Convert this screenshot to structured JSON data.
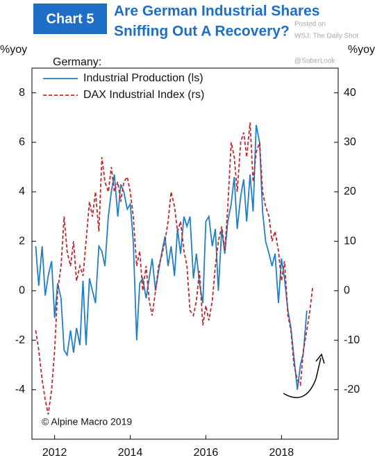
{
  "badge": "Chart 5",
  "watermark": {
    "line1": "Posted on",
    "line2": "WSJ: The Daily Shot",
    "handle": "@SoberLook"
  },
  "chart_data": {
    "type": "line",
    "title": "Are German Industrial Shares Sniffing Out A Recovery?",
    "ylabel": "%yoy",
    "y2label": "%yoy",
    "legend_title": "Germany:",
    "legend": "upper-left",
    "source": "© Alpine Macro 2019",
    "xlim": [
      2011.4,
      2019.5
    ],
    "xticks": [
      2012,
      2014,
      2016,
      2018
    ],
    "ylim": [
      -6,
      9
    ],
    "yticks": [
      -4,
      -2,
      0,
      2,
      4,
      6,
      8
    ],
    "y2lim": [
      -30,
      45
    ],
    "y2ticks": [
      -20,
      -10,
      0,
      10,
      20,
      30,
      40
    ],
    "x": [
      2011.5,
      2011.58,
      2011.67,
      2011.75,
      2011.83,
      2011.92,
      2012,
      2012.08,
      2012.17,
      2012.25,
      2012.33,
      2012.42,
      2012.5,
      2012.58,
      2012.67,
      2012.75,
      2012.83,
      2012.92,
      2013,
      2013.08,
      2013.17,
      2013.25,
      2013.33,
      2013.42,
      2013.5,
      2013.58,
      2013.67,
      2013.75,
      2013.83,
      2013.92,
      2014,
      2014.08,
      2014.17,
      2014.25,
      2014.33,
      2014.42,
      2014.5,
      2014.58,
      2014.67,
      2014.75,
      2014.83,
      2014.92,
      2015,
      2015.08,
      2015.17,
      2015.25,
      2015.33,
      2015.42,
      2015.5,
      2015.58,
      2015.67,
      2015.75,
      2015.83,
      2015.92,
      2016,
      2016.08,
      2016.17,
      2016.25,
      2016.33,
      2016.42,
      2016.5,
      2016.58,
      2016.67,
      2016.75,
      2016.83,
      2016.92,
      2017,
      2017.08,
      2017.17,
      2017.25,
      2017.33,
      2017.42,
      2017.5,
      2017.58,
      2017.67,
      2017.75,
      2017.83,
      2017.92,
      2018,
      2018.08,
      2018.17,
      2018.25,
      2018.33,
      2018.42,
      2018.5,
      2018.58,
      2018.67,
      2018.75,
      2018.83
    ],
    "series": [
      {
        "name": "Industrial Production (ls)",
        "color": "#1f7ec4",
        "axis": "y",
        "values": [
          1.8,
          0.2,
          1.8,
          -0.2,
          0.6,
          1.2,
          -1.1,
          0.3,
          -0.3,
          -2.4,
          -2.6,
          -1.6,
          -2.5,
          -1.5,
          -2.2,
          0.4,
          -2.2,
          0.5,
          0,
          -0.5,
          1.8,
          1.6,
          1,
          3,
          4,
          4.7,
          3,
          4.3,
          4,
          3.3,
          3.5,
          2,
          -2,
          0.3,
          0.5,
          -0.3,
          0.5,
          1.3,
          0,
          0.8,
          1.5,
          2.2,
          1,
          1.8,
          0.6,
          2.5,
          1.5,
          3,
          2.6,
          3,
          0.5,
          1.5,
          0.3,
          -0.5,
          2.8,
          3,
          1.8,
          2.5,
          0,
          2.5,
          1.5,
          2.8,
          3.5,
          4.6,
          2.5,
          3.8,
          4.5,
          2.8,
          4.7,
          3.2,
          6.7,
          6,
          3.2,
          2,
          1.5,
          1,
          1.5,
          -0.5,
          1.3,
          0.5,
          -0.8,
          -1.5,
          -2.7,
          -4,
          -3,
          -2.5,
          -0.8,
          null,
          null
        ]
      },
      {
        "name": "DAX Industrial Index (rs)",
        "color": "#c0282d",
        "axis": "y2",
        "dashed": true,
        "values": [
          -8,
          -12,
          -18,
          -22,
          -25,
          -20,
          -12,
          0,
          5,
          15,
          8,
          5,
          10,
          2,
          5,
          3,
          10,
          18,
          15,
          20,
          12,
          27,
          22,
          20,
          25,
          20,
          22,
          18,
          22,
          23,
          20,
          15,
          5,
          8,
          0,
          5,
          -2,
          -5,
          0,
          5,
          7,
          10,
          14,
          20,
          17,
          12,
          14,
          8,
          5,
          -4,
          -5,
          -2,
          4,
          -7,
          -3,
          -6,
          -2,
          5,
          10,
          13,
          8,
          17,
          30,
          27,
          20,
          30,
          32,
          27,
          34,
          22,
          28,
          30,
          20,
          17,
          15,
          10,
          12,
          8,
          2,
          6,
          -5,
          -8,
          -15,
          -18,
          -19,
          -12,
          -8,
          -4,
          1
        ]
      }
    ]
  }
}
